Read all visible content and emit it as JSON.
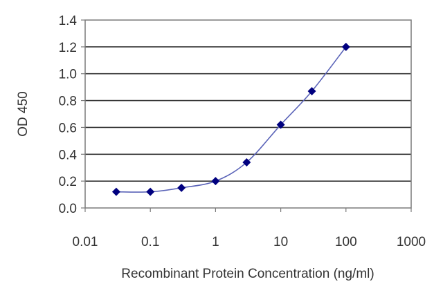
{
  "chart_data": {
    "type": "line",
    "title": "",
    "xlabel": "Recombinant Protein Concentration (ng/ml)",
    "ylabel": "OD 450",
    "x_scale": "log",
    "xlim": [
      0.01,
      1000
    ],
    "ylim": [
      0.0,
      1.4
    ],
    "x_ticks": [
      0.01,
      0.1,
      1,
      10,
      100,
      1000
    ],
    "x_tick_labels": [
      "0.01",
      "0.1",
      "1",
      "10",
      "100",
      "1000"
    ],
    "y_ticks": [
      0.0,
      0.2,
      0.4,
      0.6,
      0.8,
      1.0,
      1.2,
      1.4
    ],
    "y_tick_labels": [
      "0.0",
      "0.2",
      "0.4",
      "0.6",
      "0.8",
      "1.0",
      "1.2",
      "1.4"
    ],
    "grid": "horizontal",
    "series": [
      {
        "x": [
          0.03,
          0.1,
          0.3,
          1,
          3,
          10,
          30,
          100
        ],
        "y": [
          0.12,
          0.12,
          0.15,
          0.2,
          0.34,
          0.62,
          0.87,
          1.2
        ],
        "color": "#00007f",
        "line_color": "#5a63b8",
        "marker": "diamond"
      }
    ]
  }
}
